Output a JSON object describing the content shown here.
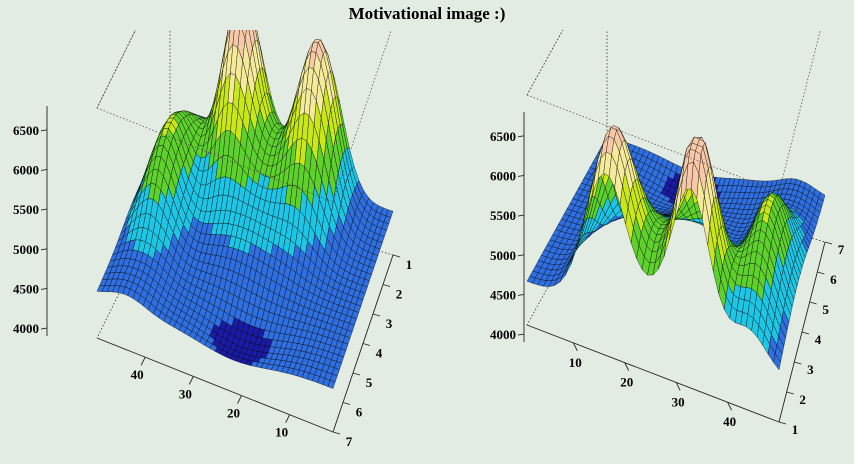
{
  "title": "Motivational image :)",
  "chart_data": [
    {
      "type": "surface",
      "panel": "left",
      "z_ticks": [
        "4000",
        "4500",
        "5000",
        "5500",
        "6000",
        "6500"
      ],
      "x_ticks": [
        "10",
        "20",
        "30",
        "40"
      ],
      "y_ticks": [
        "1",
        "2",
        "3",
        "4",
        "5",
        "6",
        "7"
      ],
      "zlim": [
        3900,
        6800
      ],
      "xlim": [
        1,
        50
      ],
      "ylim": [
        1,
        7
      ],
      "grid": false,
      "colors": [
        "#1a1aa6",
        "#2f6fe0",
        "#1ec6e6",
        "#5ed12c",
        "#c8e81a",
        "#f4ea9a",
        "#f7c9a8"
      ],
      "view": "x axis runs from 50 at back-left to 1 at front-right; y axis from 1 at back to 7 at front"
    },
    {
      "type": "surface",
      "panel": "right",
      "z_ticks": [
        "4000",
        "4500",
        "5000",
        "5500",
        "6000",
        "6500"
      ],
      "x_ticks": [
        "10",
        "20",
        "30",
        "40"
      ],
      "y_ticks": [
        "1",
        "2",
        "3",
        "4",
        "5",
        "6",
        "7"
      ],
      "zlim": [
        3900,
        6800
      ],
      "xlim": [
        1,
        50
      ],
      "ylim": [
        1,
        7
      ],
      "grid": false,
      "colors": [
        "#1a1aa6",
        "#2f6fe0",
        "#1ec6e6",
        "#5ed12c",
        "#c8e81a",
        "#f4ea9a",
        "#f7c9a8"
      ],
      "view": "x axis runs from 1 at front-left to 50 at front-right; y axis from 1 at front to 7 at back"
    }
  ]
}
